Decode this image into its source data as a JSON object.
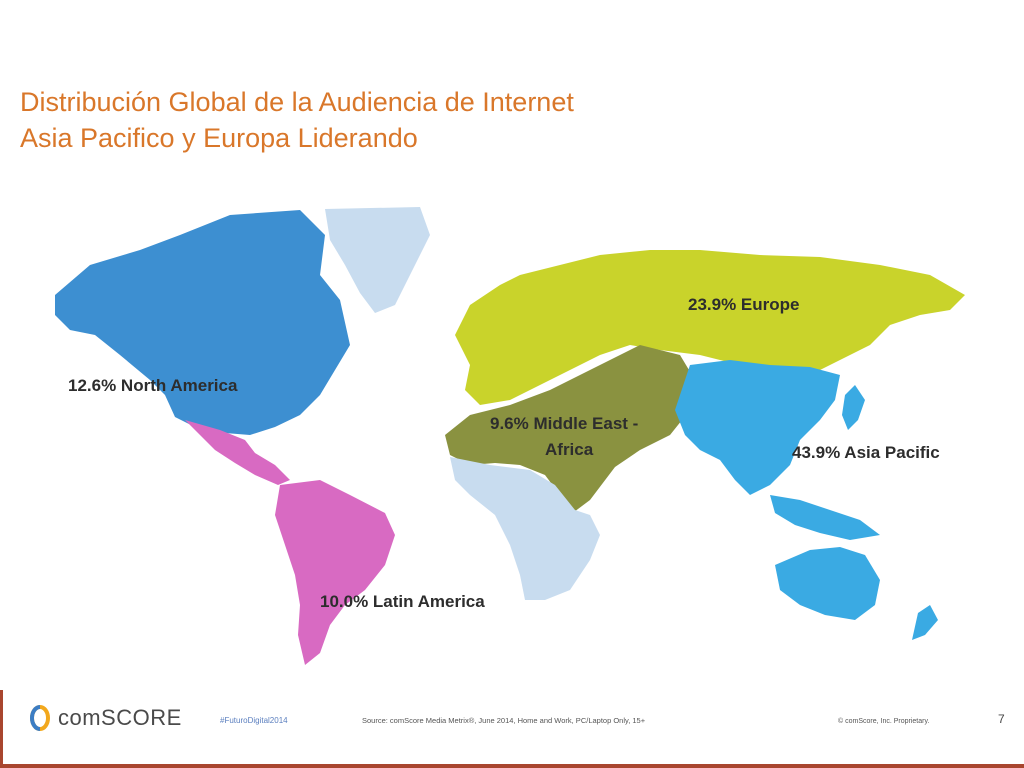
{
  "slide": {
    "title_line1": "Distribución Global de la Audiencia de Internet",
    "title_line2": "Asia Pacifico y Europa Liderando"
  },
  "map": {
    "regions": [
      {
        "name": "North America",
        "share": "12.6%",
        "label": "12.6%  North America",
        "color": "#3d8fd1"
      },
      {
        "name": "Latin America",
        "share": "10.0%",
        "label": "10.0%  Latin America",
        "color": "#d86ac2"
      },
      {
        "name": "Europe",
        "share": "23.9%",
        "label": "23.9%  Europe",
        "color": "#c9d32b"
      },
      {
        "name": "Middle East - Africa",
        "share": "9.6%",
        "label_line1": "9.6%  Middle East -",
        "label_line2": "Africa",
        "color": "#8a9240"
      },
      {
        "name": "Asia Pacific",
        "share": "43.9%",
        "label": "43.9%  Asia Pacific",
        "color": "#3aaae3"
      }
    ],
    "unassigned_color": "#c8dcef"
  },
  "footer": {
    "brand": "comSCORE",
    "hashtag": "#FuturoDigital2014",
    "source": "Source: comScore Media Metrix®, June 2014, Home and Work, PC/Laptop Only, 15+",
    "copyright": "© comScore, Inc. Proprietary.",
    "page_number": "7"
  }
}
